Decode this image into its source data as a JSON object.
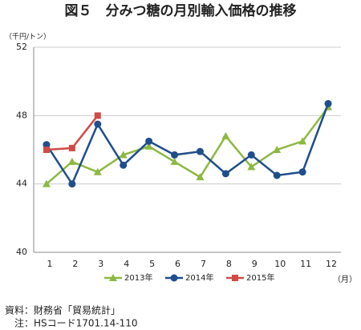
{
  "chart_data": {
    "type": "line",
    "title": "図５　分みつ糖の月別輸入価格の推移",
    "y_unit": "（千円/トン）",
    "x_unit": "（月）",
    "categories": [
      "1",
      "2",
      "3",
      "4",
      "5",
      "6",
      "7",
      "8",
      "9",
      "10",
      "11",
      "12"
    ],
    "series": [
      {
        "name": "2013年",
        "color": "#8db842",
        "marker": "triangle",
        "values": [
          44.0,
          45.3,
          44.7,
          45.7,
          46.2,
          45.3,
          44.4,
          46.8,
          45.0,
          46.0,
          46.5,
          48.5
        ]
      },
      {
        "name": "2014年",
        "color": "#1f4e8c",
        "marker": "circle",
        "values": [
          46.3,
          44.0,
          47.5,
          45.1,
          46.5,
          45.7,
          45.9,
          44.6,
          45.7,
          44.5,
          44.7,
          48.7
        ]
      },
      {
        "name": "2015年",
        "color": "#d04a46",
        "marker": "square",
        "values": [
          46.0,
          46.1,
          48.0,
          null,
          null,
          null,
          null,
          null,
          null,
          null,
          null,
          null
        ]
      }
    ],
    "ylim": [
      40,
      52
    ],
    "yticks": [
      40,
      44,
      48,
      52
    ],
    "grid": true,
    "legend": "bottom",
    "notes": [
      "資料：財務省「貿易統計」",
      "　注：HSコード1701.14-110"
    ]
  }
}
